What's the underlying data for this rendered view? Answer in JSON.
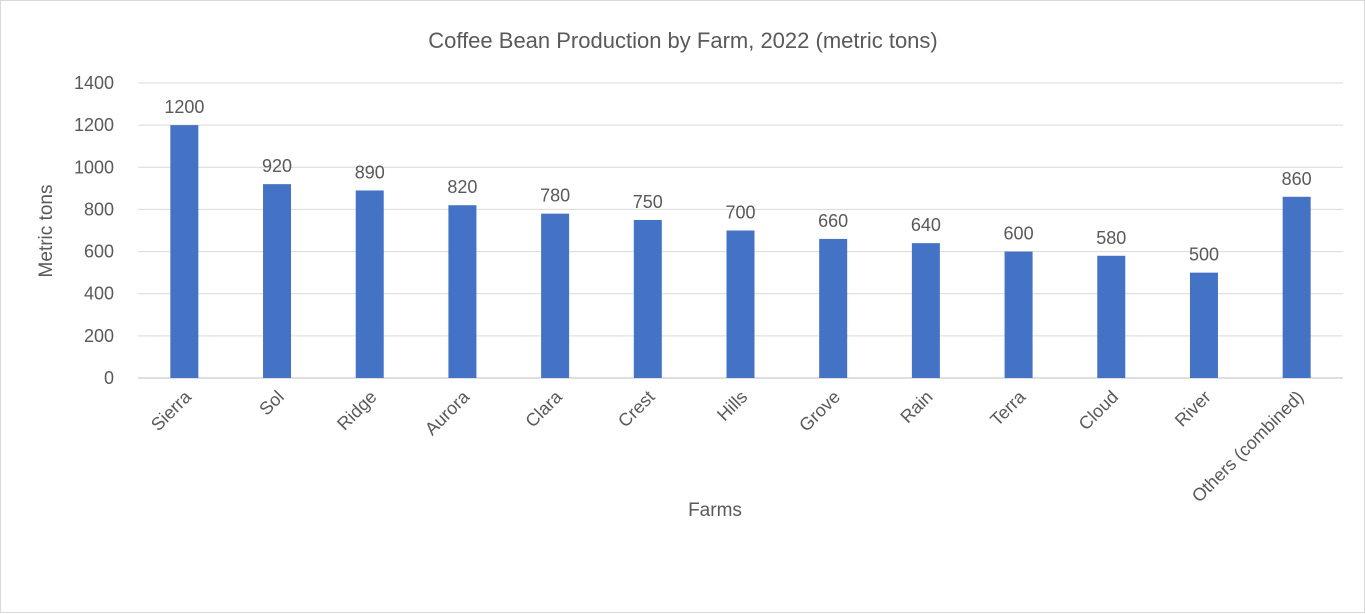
{
  "chart_data": {
    "type": "bar",
    "title": "Coffee Bean Production by Farm, 2022 (metric tons)",
    "xlabel": "Farms",
    "ylabel": "Metric tons",
    "ylim": [
      0,
      1400
    ],
    "yticks": [
      0,
      200,
      400,
      600,
      800,
      1000,
      1200,
      1400
    ],
    "grid": true,
    "categories": [
      "Sierra",
      "Sol",
      "Ridge",
      "Aurora",
      "Clara",
      "Crest",
      "Hills",
      "Grove",
      "Rain",
      "Terra",
      "Cloud",
      "River",
      "Others (combined)"
    ],
    "values": [
      1200,
      920,
      890,
      820,
      780,
      750,
      700,
      660,
      640,
      600,
      580,
      500,
      860
    ],
    "data_labels": true,
    "bar_color": "#4472C4"
  }
}
